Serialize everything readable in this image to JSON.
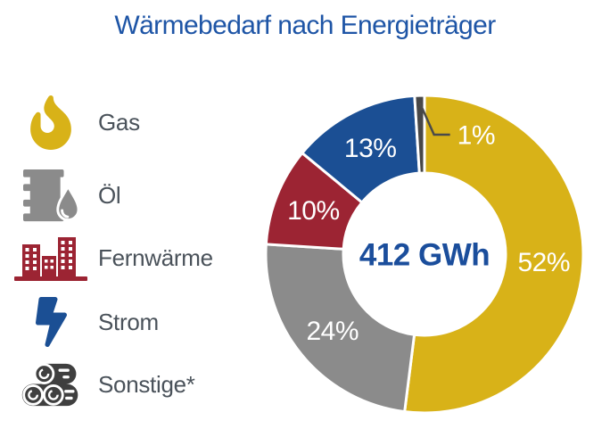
{
  "header": {
    "title": "Wärmebedarf nach Energieträger"
  },
  "legend": {
    "items": [
      {
        "label": "Gas",
        "icon": "flame-icon",
        "color": "#D8B218"
      },
      {
        "label": "Öl",
        "icon": "oil-barrel-icon",
        "color": "#8B8B8B"
      },
      {
        "label": "Fernwärme",
        "icon": "district-heating-icon",
        "color": "#9C2433"
      },
      {
        "label": "Strom",
        "icon": "lightning-bolt-icon",
        "color": "#1B4F94"
      },
      {
        "label": "Sonstige*",
        "icon": "wood-logs-icon",
        "color": "#3F3F3F"
      }
    ]
  },
  "chart_data": {
    "type": "pie",
    "subtype": "donut",
    "title": "Wärmebedarf nach Energieträger",
    "center_label": "412 GWh",
    "categories": [
      "Gas",
      "Öl",
      "Fernwärme",
      "Strom",
      "Sonstige*"
    ],
    "values": [
      52,
      24,
      10,
      13,
      1
    ],
    "labels": [
      "52%",
      "24%",
      "10%",
      "13%",
      "1%"
    ],
    "unit": "percent",
    "colors": [
      "#D8B218",
      "#8B8B8B",
      "#9C2433",
      "#1B4F94",
      "#474747"
    ],
    "start_angle_deg": 0,
    "direction": "clockwise",
    "inner_radius_ratio": 0.51,
    "separator_color": "#FFFFFF",
    "label_color": "#FFFFFF",
    "center_label_color": "#1B4E9C",
    "leader_color": "#4A4A4A",
    "min_inline_label_pct": 3,
    "legend_position": "left"
  },
  "colors": {
    "background": "#FFFFFF",
    "title": "#1E55A6",
    "legend_text": "#4A525A"
  }
}
